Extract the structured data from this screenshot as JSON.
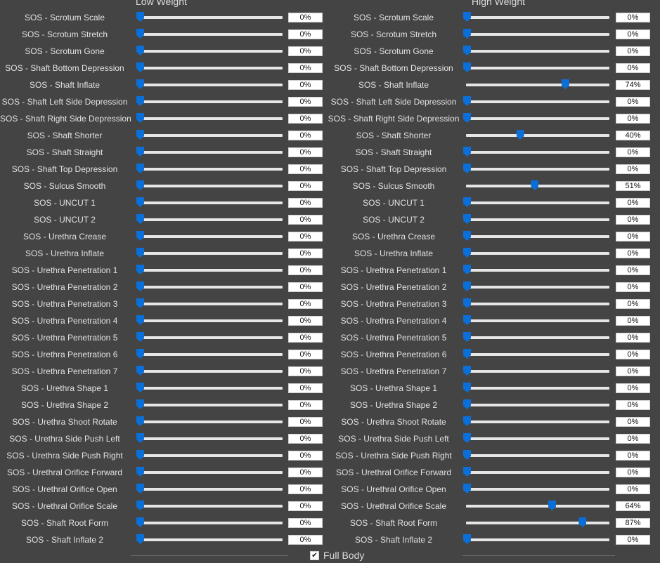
{
  "columns": [
    {
      "id": "low",
      "header": "Low Weight",
      "rows": [
        {
          "label": "SOS - Scrotum Scale",
          "value": 0,
          "display": "0%"
        },
        {
          "label": "SOS - Scrotum Stretch",
          "value": 0,
          "display": "0%"
        },
        {
          "label": "SOS - Scrotum Gone",
          "value": 0,
          "display": "0%"
        },
        {
          "label": "SOS - Shaft Bottom Depression",
          "value": 0,
          "display": "0%"
        },
        {
          "label": "SOS - Shaft Inflate",
          "value": 0,
          "display": "0%"
        },
        {
          "label": "SOS - Shaft Left Side Depression",
          "value": 0,
          "display": "0%"
        },
        {
          "label": "SOS - Shaft Right Side Depression",
          "value": 0,
          "display": "0%"
        },
        {
          "label": "SOS - Shaft Shorter",
          "value": 0,
          "display": "0%"
        },
        {
          "label": "SOS - Shaft Straight",
          "value": 0,
          "display": "0%"
        },
        {
          "label": "SOS - Shaft Top Depression",
          "value": 0,
          "display": "0%"
        },
        {
          "label": "SOS - Sulcus Smooth",
          "value": 0,
          "display": "0%"
        },
        {
          "label": "SOS - UNCUT 1",
          "value": 0,
          "display": "0%"
        },
        {
          "label": "SOS - UNCUT 2",
          "value": 0,
          "display": "0%"
        },
        {
          "label": "SOS - Urethra Crease",
          "value": 0,
          "display": "0%"
        },
        {
          "label": "SOS - Urethra Inflate",
          "value": 0,
          "display": "0%"
        },
        {
          "label": "SOS - Urethra Penetration 1",
          "value": 0,
          "display": "0%"
        },
        {
          "label": "SOS - Urethra Penetration 2",
          "value": 0,
          "display": "0%"
        },
        {
          "label": "SOS - Urethra Penetration 3",
          "value": 0,
          "display": "0%"
        },
        {
          "label": "SOS - Urethra Penetration 4",
          "value": 0,
          "display": "0%"
        },
        {
          "label": "SOS - Urethra Penetration 5",
          "value": 0,
          "display": "0%"
        },
        {
          "label": "SOS - Urethra Penetration 6",
          "value": 0,
          "display": "0%"
        },
        {
          "label": "SOS - Urethra Penetration 7",
          "value": 0,
          "display": "0%"
        },
        {
          "label": "SOS - Urethra Shape 1",
          "value": 0,
          "display": "0%"
        },
        {
          "label": "SOS - Urethra Shape 2",
          "value": 0,
          "display": "0%"
        },
        {
          "label": "SOS - Urethra Shoot Rotate",
          "value": 0,
          "display": "0%"
        },
        {
          "label": "SOS - Urethra Side Push Left",
          "value": 0,
          "display": "0%"
        },
        {
          "label": "SOS - Urethra Side Push Right",
          "value": 0,
          "display": "0%"
        },
        {
          "label": "SOS - Urethral Orifice Forward",
          "value": 0,
          "display": "0%"
        },
        {
          "label": "SOS - Urethral Orifice Open",
          "value": 0,
          "display": "0%"
        },
        {
          "label": "SOS - Urethral Orifice Scale",
          "value": 0,
          "display": "0%"
        },
        {
          "label": "SOS - Shaft Root Form",
          "value": 0,
          "display": "0%"
        },
        {
          "label": "SOS - Shaft Inflate 2",
          "value": 0,
          "display": "0%"
        }
      ]
    },
    {
      "id": "high",
      "header": "High Weight",
      "rows": [
        {
          "label": "SOS - Scrotum Scale",
          "value": 0,
          "display": "0%"
        },
        {
          "label": "SOS - Scrotum Stretch",
          "value": 0,
          "display": "0%"
        },
        {
          "label": "SOS - Scrotum Gone",
          "value": 0,
          "display": "0%"
        },
        {
          "label": "SOS - Shaft Bottom Depression",
          "value": 0,
          "display": "0%"
        },
        {
          "label": "SOS - Shaft Inflate",
          "value": 74,
          "display": "74%"
        },
        {
          "label": "SOS - Shaft Left Side Depression",
          "value": 0,
          "display": "0%"
        },
        {
          "label": "SOS - Shaft Right Side Depression",
          "value": 0,
          "display": "0%"
        },
        {
          "label": "SOS - Shaft Shorter",
          "value": 40,
          "display": "40%"
        },
        {
          "label": "SOS - Shaft Straight",
          "value": 0,
          "display": "0%"
        },
        {
          "label": "SOS - Shaft Top Depression",
          "value": 0,
          "display": "0%"
        },
        {
          "label": "SOS - Sulcus Smooth",
          "value": 51,
          "display": "51%"
        },
        {
          "label": "SOS - UNCUT 1",
          "value": 0,
          "display": "0%"
        },
        {
          "label": "SOS - UNCUT 2",
          "value": 0,
          "display": "0%"
        },
        {
          "label": "SOS - Urethra Crease",
          "value": 0,
          "display": "0%"
        },
        {
          "label": "SOS - Urethra Inflate",
          "value": 0,
          "display": "0%"
        },
        {
          "label": "SOS - Urethra Penetration 1",
          "value": 0,
          "display": "0%"
        },
        {
          "label": "SOS - Urethra Penetration 2",
          "value": 0,
          "display": "0%"
        },
        {
          "label": "SOS - Urethra Penetration 3",
          "value": 0,
          "display": "0%"
        },
        {
          "label": "SOS - Urethra Penetration 4",
          "value": 0,
          "display": "0%"
        },
        {
          "label": "SOS - Urethra Penetration 5",
          "value": 0,
          "display": "0%"
        },
        {
          "label": "SOS - Urethra Penetration 6",
          "value": 0,
          "display": "0%"
        },
        {
          "label": "SOS - Urethra Penetration 7",
          "value": 0,
          "display": "0%"
        },
        {
          "label": "SOS - Urethra Shape 1",
          "value": 0,
          "display": "0%"
        },
        {
          "label": "SOS - Urethra Shape 2",
          "value": 0,
          "display": "0%"
        },
        {
          "label": "SOS - Urethra Shoot Rotate",
          "value": 0,
          "display": "0%"
        },
        {
          "label": "SOS - Urethra Side Push Left",
          "value": 0,
          "display": "0%"
        },
        {
          "label": "SOS - Urethra Side Push Right",
          "value": 0,
          "display": "0%"
        },
        {
          "label": "SOS - Urethral Orifice Forward",
          "value": 0,
          "display": "0%"
        },
        {
          "label": "SOS - Urethral Orifice Open",
          "value": 0,
          "display": "0%"
        },
        {
          "label": "SOS - Urethral Orifice Scale",
          "value": 64,
          "display": "64%"
        },
        {
          "label": "SOS - Shaft Root Form",
          "value": 87,
          "display": "87%"
        },
        {
          "label": "SOS - Shaft Inflate 2",
          "value": 0,
          "display": "0%"
        }
      ]
    }
  ],
  "footer": {
    "checkbox_label": "Full Body",
    "checkbox_checked": true
  },
  "colors": {
    "background": "#444444",
    "accent": "#0a6fd8",
    "track": "#e6e6e6"
  }
}
